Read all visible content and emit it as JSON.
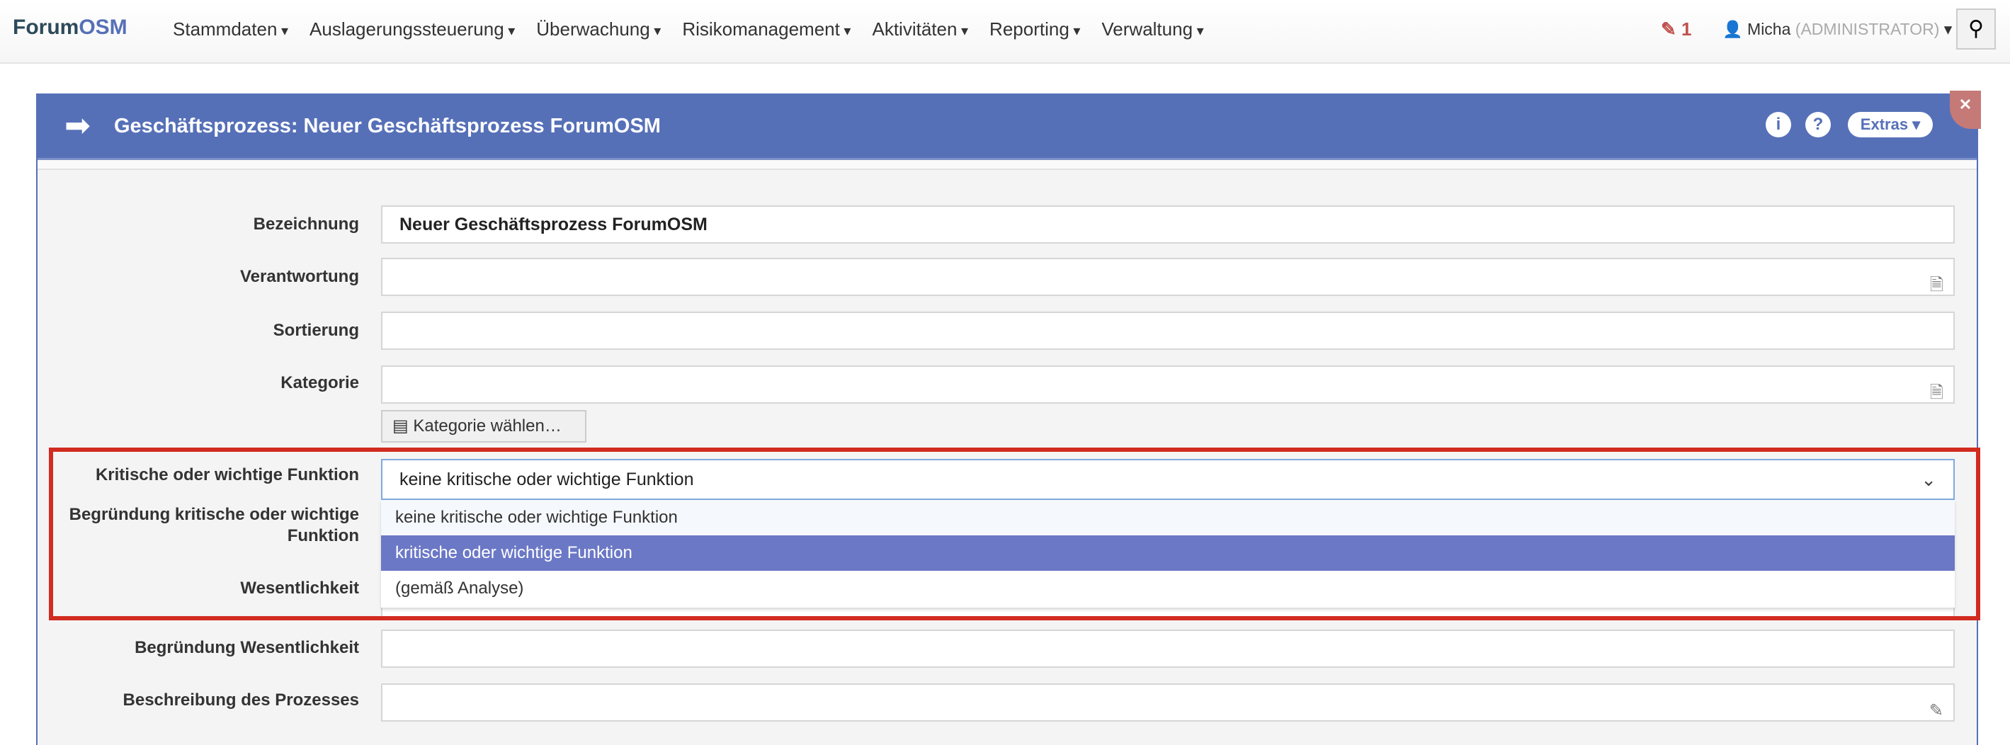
{
  "nav": {
    "brand_a": "Forum",
    "brand_b": "OSM",
    "menu": [
      "Stammdaten",
      "Auslagerungssteuerung",
      "Überwachung",
      "Risikomanagement",
      "Aktivitäten",
      "Reporting",
      "Verwaltung"
    ],
    "edits_count": "1",
    "user": "Micha",
    "role": "(ADMINISTRATOR)"
  },
  "panel": {
    "title": "Geschäftsprozess: Neuer Geschäftsprozess ForumOSM",
    "extras": "Extras",
    "color": "#5670b8"
  },
  "form": {
    "bezeichnung_label": "Bezeichnung",
    "bezeichnung_value": "Neuer Geschäftsprozess ForumOSM",
    "verantwortung_label": "Verantwortung",
    "sortierung_label": "Sortierung",
    "kategorie_label": "Kategorie",
    "kategorie_button": "Kategorie wählen…",
    "kritisch_label": "Kritische oder wichtige Funktion",
    "kritisch_value": "keine kritische oder wichtige Funktion",
    "kritisch_options": [
      "keine kritische oder wichtige Funktion",
      "kritische oder wichtige Funktion",
      "(gemäß Analyse)"
    ],
    "highlighted_option": "kritische oder wichtige Funktion",
    "begruendung_kritisch_label_1": "Begründung kritische oder wichtige",
    "begruendung_kritisch_label_2": "Funktion",
    "wesentlichkeit_label": "Wesentlichkeit",
    "begruendung_wesentlichkeit_label": "Begründung Wesentlichkeit",
    "beschreibung_label": "Beschreibung des Prozesses"
  }
}
